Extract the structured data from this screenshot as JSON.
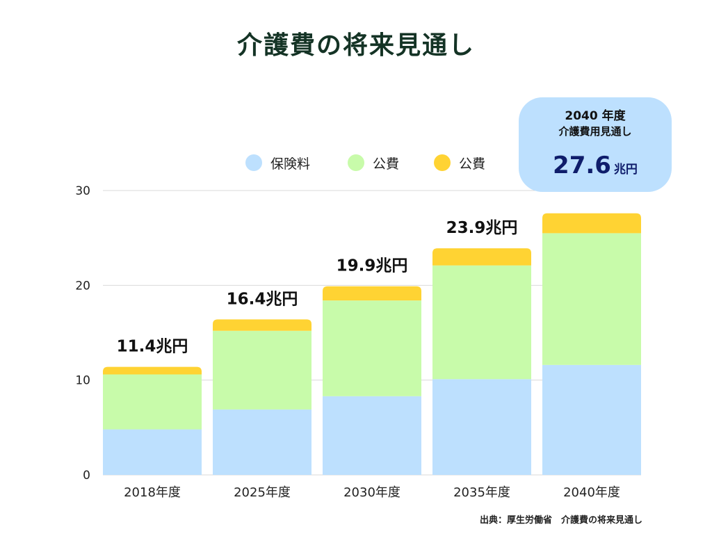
{
  "title": "介護費の将来見通し",
  "callout": {
    "line1": "2040 年度",
    "line2": "介護費用見通し",
    "value": "27.6",
    "unit": "兆円",
    "bg_color": "#bde0fe"
  },
  "source": "出典：厚生労働省　介護費の将来見通し",
  "chart_data": {
    "type": "bar",
    "stacked": true,
    "categories": [
      "2018年度",
      "2025年度",
      "2030年度",
      "2035年度",
      "2040年度"
    ],
    "series": [
      {
        "name": "保険料",
        "color": "#bde0fe",
        "values": [
          4.8,
          6.9,
          8.3,
          10.1,
          11.6
        ]
      },
      {
        "name": "公費",
        "color": "#c8fbaa",
        "values": [
          5.8,
          8.3,
          10.1,
          12.0,
          13.9
        ]
      },
      {
        "name": "公費",
        "color": "#ffd333",
        "values": [
          0.8,
          1.2,
          1.5,
          1.8,
          2.1
        ]
      }
    ],
    "totals": [
      11.4,
      16.4,
      19.9,
      23.9,
      27.6
    ],
    "total_labels": [
      "11.4兆円",
      "16.4兆円",
      "19.9兆円",
      "23.9兆円",
      ""
    ],
    "yticks": [
      0,
      10,
      20,
      30
    ],
    "ylim": [
      0,
      30
    ],
    "grid": true,
    "legend": "top"
  }
}
